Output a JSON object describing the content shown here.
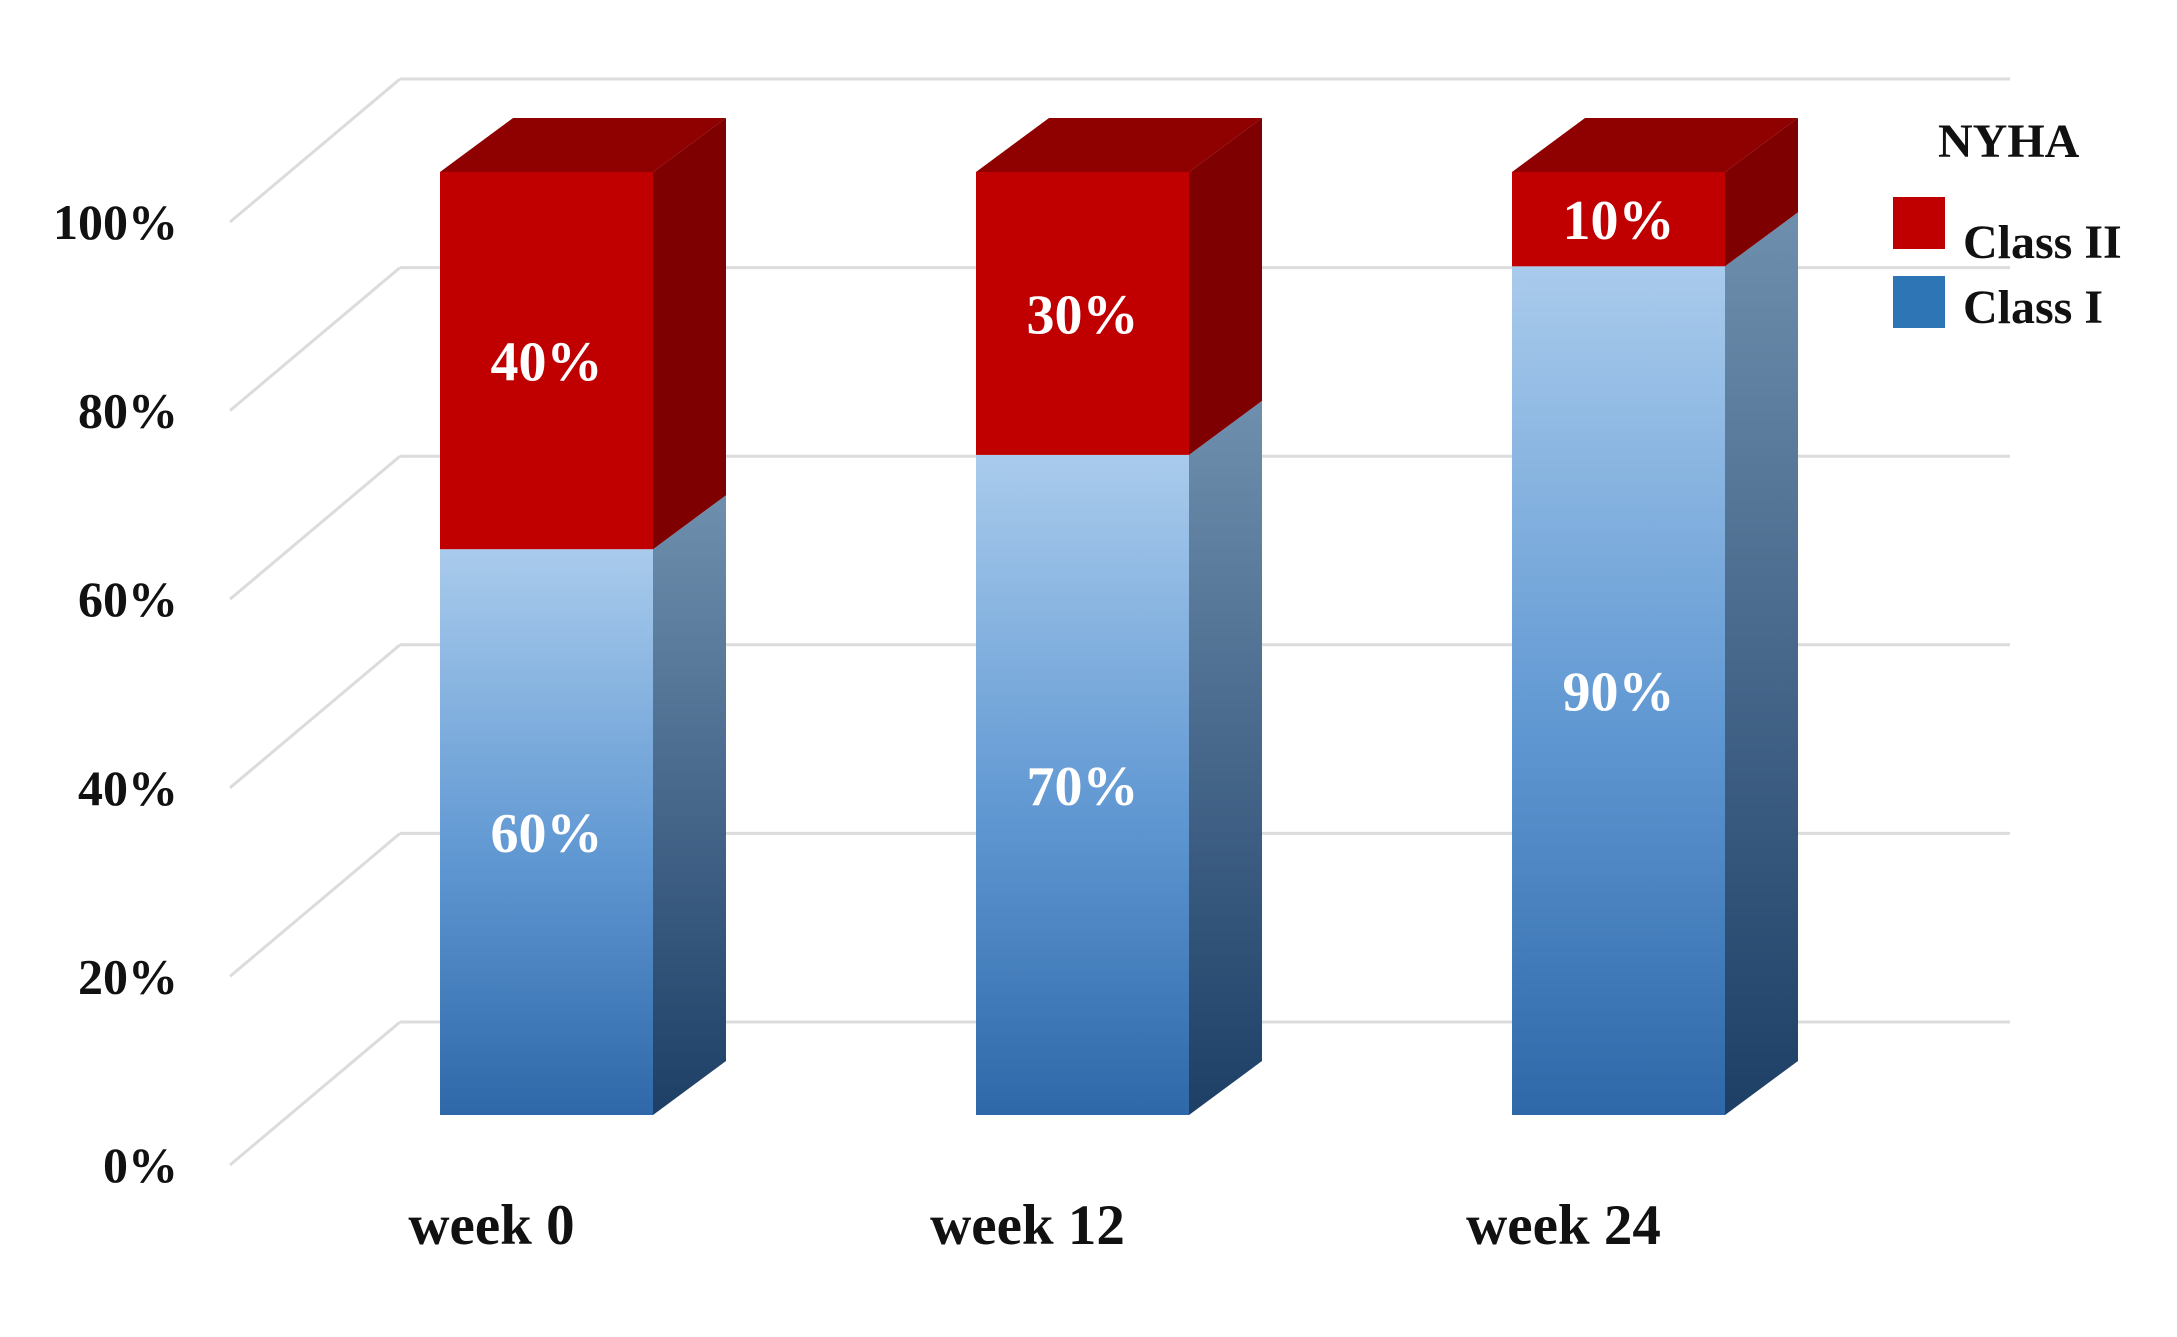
{
  "chart_data": {
    "type": "bar",
    "stacked": true,
    "percent": true,
    "style": "3d",
    "categories": [
      "week 0",
      "week 12",
      "week 24"
    ],
    "series": [
      {
        "name": "Class I",
        "values": [
          60,
          70,
          90
        ],
        "labels": [
          "60%",
          "70%",
          "90%"
        ],
        "color": "#2e6fb0"
      },
      {
        "name": "Class II",
        "values": [
          40,
          30,
          10
        ],
        "labels": [
          "40%",
          "30%",
          "10%"
        ],
        "color": "#c00000"
      }
    ],
    "y_ticks": [
      "0%",
      "20%",
      "40%",
      "60%",
      "80%",
      "100%"
    ],
    "ylim": [
      0,
      100
    ],
    "legend": {
      "title": "NYHA",
      "position": "top-right",
      "order": [
        "Class II",
        "Class I"
      ]
    },
    "grid": true
  }
}
